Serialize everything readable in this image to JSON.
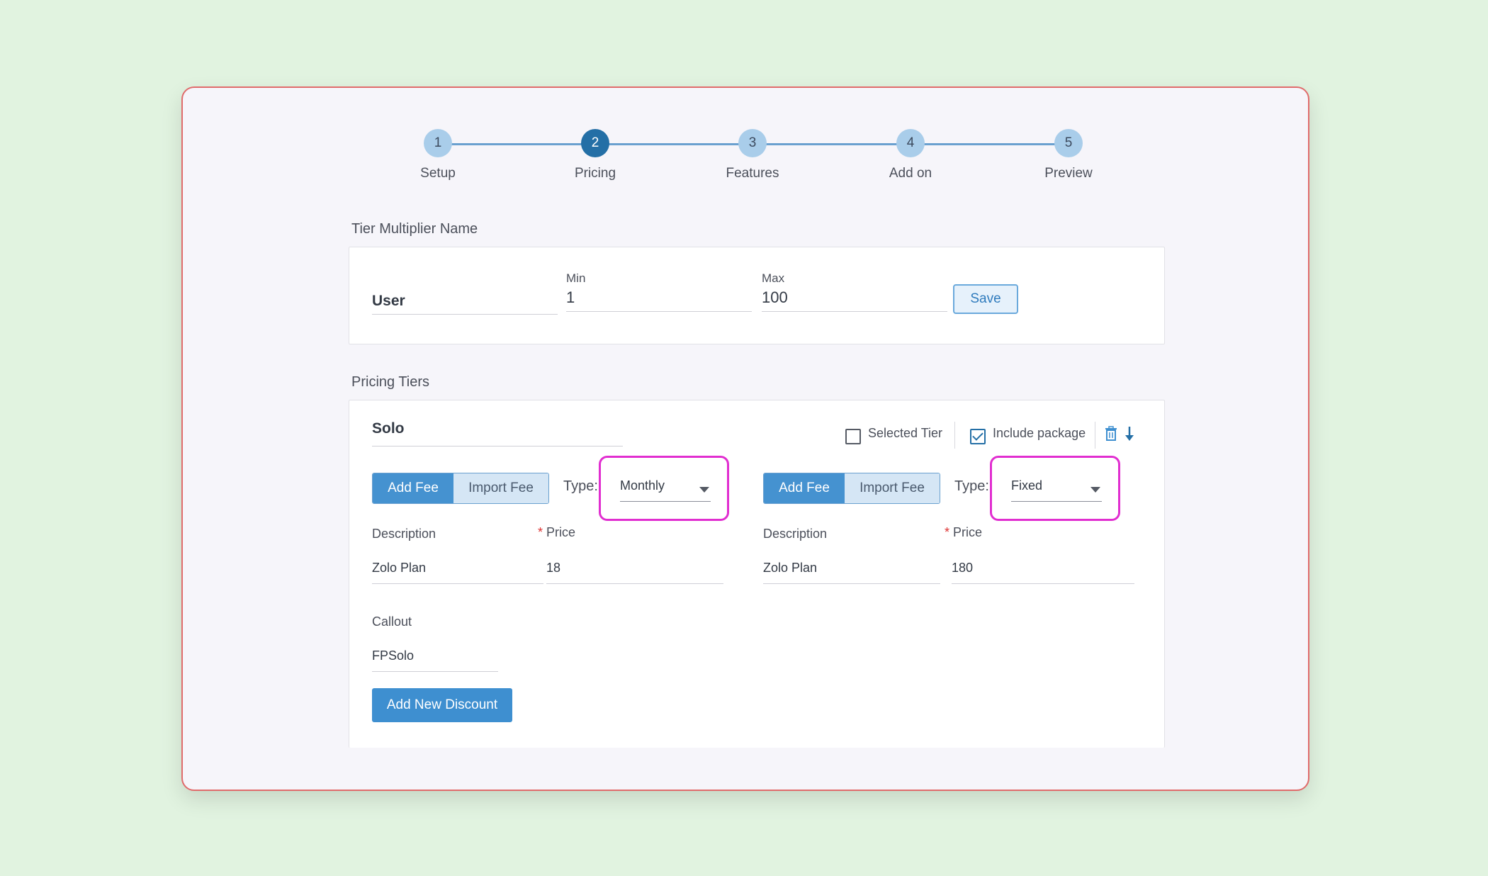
{
  "stepper": {
    "steps": [
      {
        "number": "1",
        "label": "Setup",
        "active": false
      },
      {
        "number": "2",
        "label": "Pricing",
        "active": true
      },
      {
        "number": "3",
        "label": "Features",
        "active": false
      },
      {
        "number": "4",
        "label": "Add on",
        "active": false
      },
      {
        "number": "5",
        "label": "Preview",
        "active": false
      }
    ]
  },
  "tier_multiplier": {
    "section_title": "Tier Multiplier Name",
    "name_value": "User",
    "min_label": "Min",
    "min_value": "1",
    "max_label": "Max",
    "max_value": "100",
    "save_label": "Save"
  },
  "pricing_tiers": {
    "section_title": "Pricing Tiers",
    "tier_name": "Solo",
    "selected_tier_label": "Selected Tier",
    "selected_tier_checked": false,
    "include_package_label": "Include package",
    "include_package_checked": true,
    "fees": [
      {
        "add_fee_label": "Add Fee",
        "import_fee_label": "Import Fee",
        "type_label": "Type:",
        "type_value": "Monthly",
        "description_label": "Description",
        "description_value": "Zolo Plan",
        "price_required": "*",
        "price_label": "Price",
        "price_value": "18"
      },
      {
        "add_fee_label": "Add Fee",
        "import_fee_label": "Import Fee",
        "type_label": "Type:",
        "type_value": "Fixed",
        "description_label": "Description",
        "description_value": "Zolo Plan",
        "price_required": "*",
        "price_label": "Price",
        "price_value": "180"
      }
    ],
    "callout_label": "Callout",
    "callout_value": "FPSolo",
    "add_discount_label": "Add New Discount"
  },
  "colors": {
    "accent": "#3e8fd0",
    "active_step": "#246fa6",
    "highlight": "#e12ed0",
    "window_border": "#e06b6b"
  }
}
